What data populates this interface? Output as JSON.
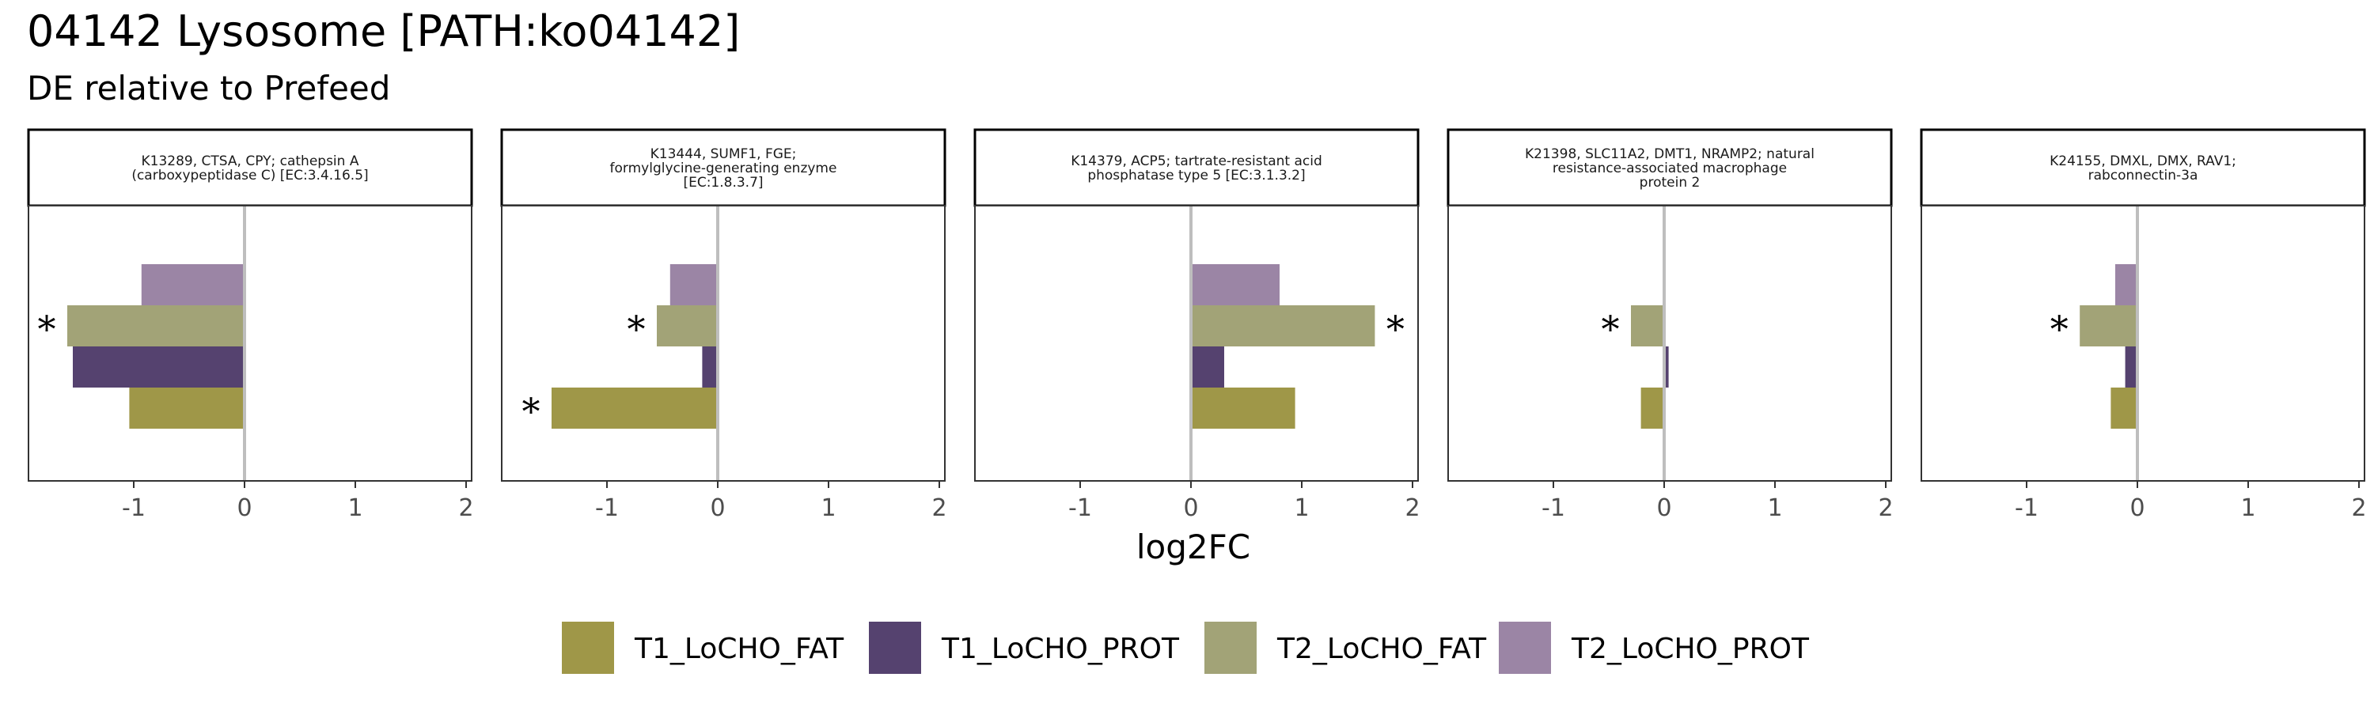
{
  "title": "04142 Lysosome [PATH:ko04142]",
  "subtitle": "DE relative to Prefeed",
  "xlabel": "log2FC",
  "colors": {
    "T1_LoCHO_FAT": "#9f9748",
    "T1_LoCHO_PROT": "#55426f",
    "T2_LoCHO_FAT": "#a2a377",
    "T2_LoCHO_PROT": "#9b85a5",
    "zero_line": "#bebebe"
  },
  "legend": {
    "position": "bottom",
    "items": [
      "T1_LoCHO_FAT",
      "T1_LoCHO_PROT",
      "T2_LoCHO_FAT",
      "T2_LoCHO_PROT"
    ]
  },
  "chart_data": {
    "type": "bar",
    "orientation": "horizontal",
    "xlim": [
      -1.95,
      2.05
    ],
    "xticks": [
      -1,
      0,
      1,
      2
    ],
    "xtick_labels": [
      "-1",
      "0",
      "1",
      "2"
    ],
    "series_order_top_to_bottom": [
      "T2_LoCHO_PROT",
      "T2_LoCHO_FAT",
      "T1_LoCHO_PROT",
      "T1_LoCHO_FAT"
    ],
    "significance_marker": "*",
    "panels": [
      {
        "strip_lines": [
          "K13289, CTSA, CPY; cathepsin A",
          "(carboxypeptidase C) [EC:3.4.16.5]"
        ],
        "values": {
          "T2_LoCHO_PROT": -0.93,
          "T2_LoCHO_FAT": -1.6,
          "T1_LoCHO_PROT": -1.55,
          "T1_LoCHO_FAT": -1.04
        },
        "significant": [
          "T2_LoCHO_FAT"
        ]
      },
      {
        "strip_lines": [
          "K13444, SUMF1, FGE;",
          "formylglycine-generating enzyme",
          "[EC:1.8.3.7]"
        ],
        "values": {
          "T2_LoCHO_PROT": -0.43,
          "T2_LoCHO_FAT": -0.55,
          "T1_LoCHO_PROT": -0.14,
          "T1_LoCHO_FAT": -1.5
        },
        "significant": [
          "T2_LoCHO_FAT",
          "T1_LoCHO_FAT"
        ]
      },
      {
        "strip_lines": [
          "K14379, ACP5; tartrate-resistant acid",
          "phosphatase type 5 [EC:3.1.3.2]"
        ],
        "values": {
          "T2_LoCHO_PROT": 0.8,
          "T2_LoCHO_FAT": 1.66,
          "T1_LoCHO_PROT": 0.3,
          "T1_LoCHO_FAT": 0.94
        },
        "significant": [
          "T2_LoCHO_FAT"
        ]
      },
      {
        "strip_lines": [
          "K21398, SLC11A2, DMT1, NRAMP2; natural",
          "resistance-associated macrophage",
          "protein 2"
        ],
        "values": {
          "T2_LoCHO_PROT": 0.0,
          "T2_LoCHO_FAT": -0.3,
          "T1_LoCHO_PROT": 0.04,
          "T1_LoCHO_FAT": -0.21
        },
        "significant": [
          "T2_LoCHO_FAT"
        ]
      },
      {
        "strip_lines": [
          "K24155, DMXL, DMX, RAV1;",
          "rabconnectin-3a"
        ],
        "values": {
          "T2_LoCHO_PROT": -0.2,
          "T2_LoCHO_FAT": -0.52,
          "T1_LoCHO_PROT": -0.11,
          "T1_LoCHO_FAT": -0.24
        },
        "significant": [
          "T2_LoCHO_FAT"
        ]
      }
    ]
  }
}
